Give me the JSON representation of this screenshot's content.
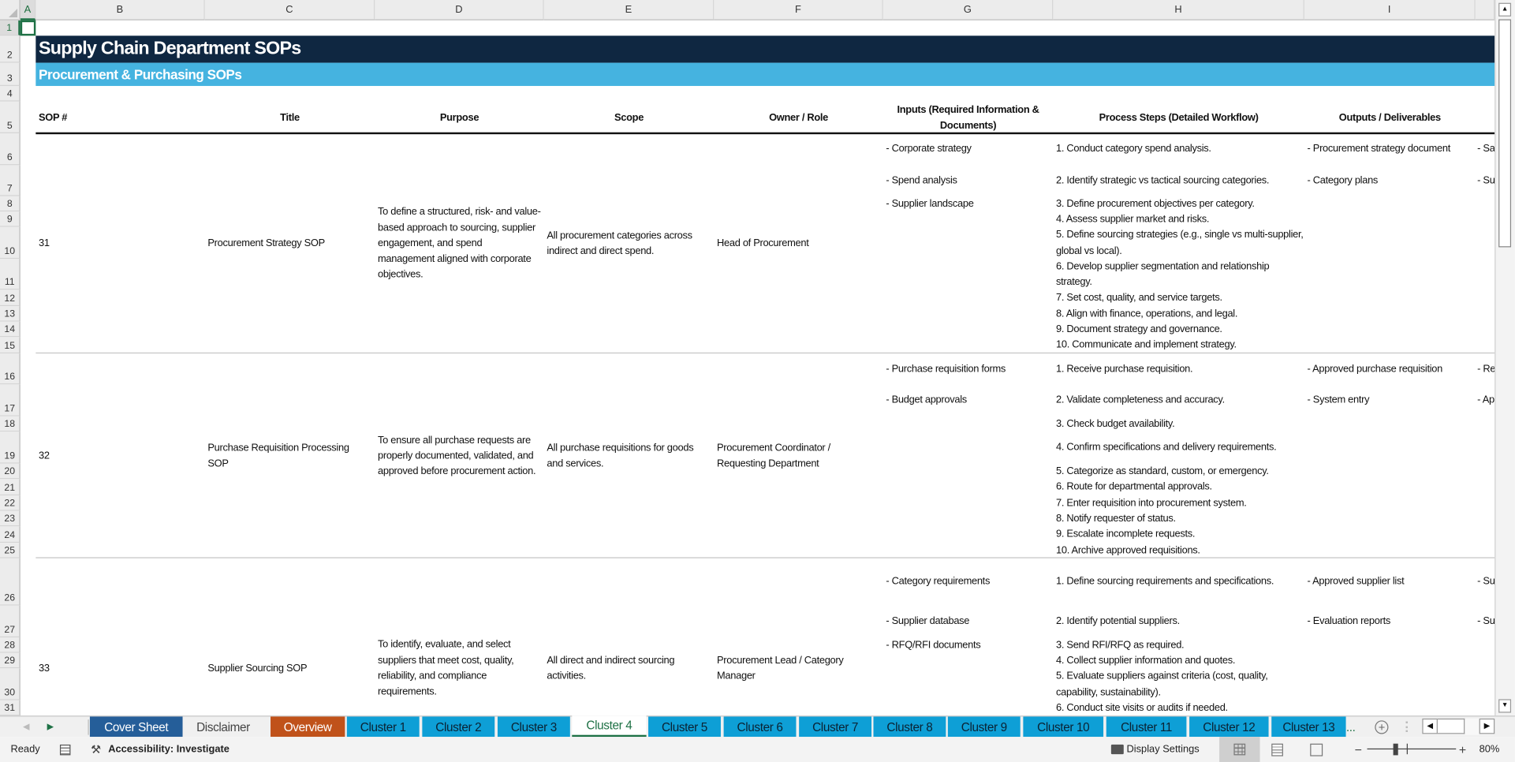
{
  "sheet": {
    "columns": [
      "A",
      "B",
      "C",
      "D",
      "E",
      "F",
      "G",
      "H",
      "I"
    ],
    "selected_cell": "A1",
    "rows": [
      1,
      2,
      3,
      4,
      5,
      6,
      7,
      8,
      9,
      10,
      11,
      12,
      13,
      14,
      15,
      16,
      17,
      18,
      19,
      20,
      21,
      22,
      23,
      24,
      25,
      26,
      27,
      28,
      29,
      30,
      31
    ],
    "title": "Supply Chain Department SOPs",
    "subtitle": "Procurement & Purchasing SOPs",
    "headers": [
      "SOP #",
      "Title",
      "Purpose",
      "Scope",
      "Owner / Role",
      "Inputs (Required Information & Documents)",
      "Process Steps (Detailed Workflow)",
      "Outputs / Deliverables"
    ],
    "colors": {
      "title_bg": "#0f2741",
      "subtitle_bg": "#45b3e0",
      "cover_tab": "#255e99",
      "overview_tab": "#c0521a",
      "cluster_tab": "#0e9fd6",
      "active_tab_text": "#1e7145"
    },
    "sops": [
      {
        "number": "31",
        "title": "Procurement Strategy SOP",
        "purpose": "To define a structured, risk- and value-based approach to sourcing, supplier engagement, and spend management aligned with corporate objectives.",
        "scope": "All procurement categories across indirect and direct spend.",
        "owner": "Head of Procurement",
        "inputs": [
          "- Corporate strategy",
          "- Spend analysis",
          "- Supplier landscape"
        ],
        "steps": [
          "1. Conduct category spend analysis.",
          "2. Identify strategic vs tactical sourcing categories.",
          "3. Define procurement objectives per category.",
          "4. Assess supplier market and risks.",
          "5. Define sourcing strategies (e.g., single vs multi-supplier, global vs local).",
          "6. Develop supplier segmentation and relationship strategy.",
          "7. Set cost, quality, and service targets.",
          "8. Align with finance, operations, and legal.",
          "9. Document strategy and governance.",
          "10. Communicate and implement strategy."
        ],
        "outputs": [
          "- Procurement strategy document",
          "- Category plans"
        ],
        "next_col": [
          "- Sa",
          "- Su"
        ]
      },
      {
        "number": "32",
        "title": "Purchase Requisition Processing SOP",
        "purpose": "To ensure all purchase requests are properly documented, validated, and approved before procurement action.",
        "scope": "All purchase requisitions for goods and services.",
        "owner": "Procurement Coordinator / Requesting Department",
        "inputs": [
          "- Purchase requisition forms",
          "- Budget approvals"
        ],
        "steps": [
          "1. Receive purchase requisition.",
          "2. Validate completeness and accuracy.",
          "3. Check budget availability.",
          "4. Confirm specifications and delivery requirements.",
          "5. Categorize as standard, custom, or emergency.",
          "6. Route for departmental approvals.",
          "7. Enter requisition into procurement system.",
          "8. Notify requester of status.",
          "9. Escalate incomplete requests.",
          "10. Archive approved requisitions."
        ],
        "outputs": [
          "- Approved purchase requisition",
          "- System entry"
        ],
        "next_col": [
          "- Re",
          "- Ap"
        ]
      },
      {
        "number": "33",
        "title": "Supplier Sourcing SOP",
        "purpose": "To identify, evaluate, and select suppliers that meet cost, quality, reliability, and compliance requirements.",
        "scope": "All direct and indirect sourcing activities.",
        "owner": "Procurement Lead / Category Manager",
        "inputs": [
          "- Category requirements",
          "- Supplier database",
          "- RFQ/RFI documents"
        ],
        "steps": [
          "1. Define sourcing requirements and specifications.",
          "2. Identify potential suppliers.",
          "3. Send RFI/RFQ as required.",
          "4. Collect supplier information and quotes.",
          "5. Evaluate suppliers against criteria (cost, quality, capability, sustainability).",
          "6. Conduct site visits or audits if needed."
        ],
        "outputs": [
          "- Approved supplier list",
          "- Evaluation reports"
        ],
        "next_col": [
          "- Su",
          "- Su"
        ]
      }
    ]
  },
  "tabs": {
    "items": [
      "Cover Sheet",
      "Disclaimer",
      "Overview",
      "Cluster 1",
      "Cluster 2",
      "Cluster 3",
      "Cluster 4",
      "Cluster 5",
      "Cluster 6",
      "Cluster 7",
      "Cluster 8",
      "Cluster 9",
      "Cluster 10",
      "Cluster 11",
      "Cluster 12",
      "Cluster 13"
    ],
    "active": "Cluster 4",
    "more": "...",
    "add_icon": "plus-circle-icon"
  },
  "status": {
    "ready": "Ready",
    "accessibility": "Accessibility: Investigate",
    "display_settings": "Display Settings",
    "zoom": "80%",
    "zoom_minus": "−",
    "zoom_plus": "+"
  }
}
